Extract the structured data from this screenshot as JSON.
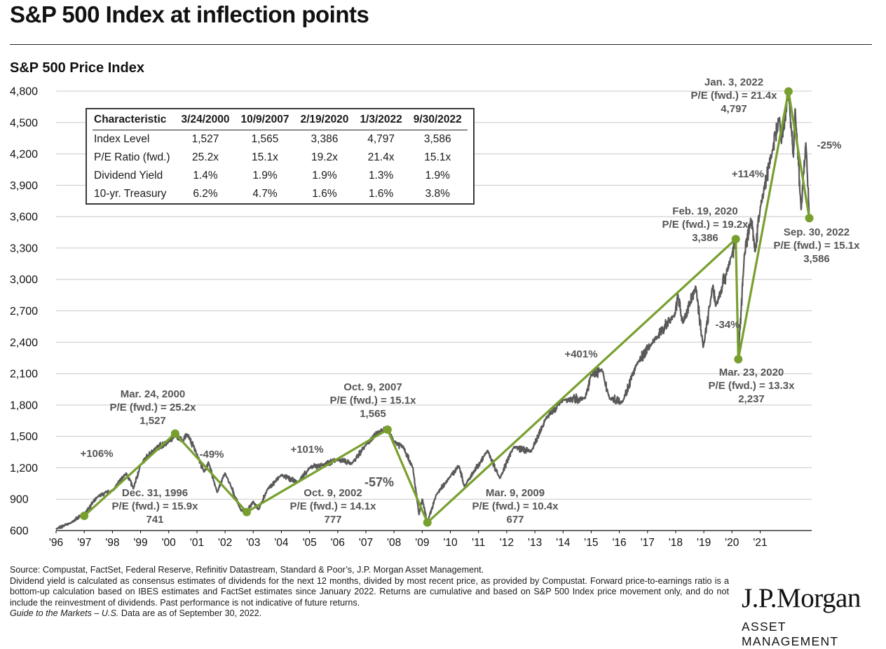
{
  "page": {
    "title": "S&P 500 Index at inflection points",
    "subtitle": "S&P 500 Price Index"
  },
  "chart_data": {
    "type": "line",
    "title": "S&P 500 Price Index",
    "ylim": [
      600,
      4800
    ],
    "y_ticks": [
      "4,800",
      "4,500",
      "4,200",
      "3,900",
      "3,600",
      "3,300",
      "3,000",
      "2,700",
      "2,400",
      "2,100",
      "1,800",
      "1,500",
      "1,200",
      "900",
      "600"
    ],
    "x_ticks": [
      "'96",
      "'97",
      "'98",
      "'99",
      "'00",
      "'01",
      "'02",
      "'03",
      "'04",
      "'05",
      "'06",
      "'07",
      "'08",
      "'09",
      "'10",
      "'11",
      "'12",
      "'13",
      "'14",
      "'15",
      "'16",
      "'17",
      "'18",
      "'19",
      "'20",
      "'21"
    ],
    "x_range": [
      "1996-01-01",
      "2022-10-31"
    ],
    "colors": {
      "index_line": "#595959",
      "inflection": "#78a02e",
      "grid": "#c8c8c8"
    },
    "series": [
      {
        "name": "S&P 500 Price Index",
        "points": [
          [
            "1996-01-01",
            615
          ],
          [
            "1996-07-01",
            670
          ],
          [
            "1997-01-01",
            760
          ],
          [
            "1997-07-01",
            930
          ],
          [
            "1998-01-01",
            980
          ],
          [
            "1998-07-01",
            1150
          ],
          [
            "1998-10-01",
            1000
          ],
          [
            "1999-01-01",
            1230
          ],
          [
            "1999-07-01",
            1380
          ],
          [
            "2000-01-01",
            1450
          ],
          [
            "2000-03-24",
            1527
          ],
          [
            "2000-07-01",
            1460
          ],
          [
            "2000-09-01",
            1520
          ],
          [
            "2001-01-01",
            1330
          ],
          [
            "2001-04-01",
            1160
          ],
          [
            "2001-06-01",
            1250
          ],
          [
            "2001-09-21",
            965
          ],
          [
            "2002-01-01",
            1150
          ],
          [
            "2002-07-23",
            797
          ],
          [
            "2002-10-09",
            777
          ],
          [
            "2003-01-01",
            880
          ],
          [
            "2003-03-11",
            800
          ],
          [
            "2003-07-01",
            990
          ],
          [
            "2004-01-01",
            1130
          ],
          [
            "2004-08-01",
            1060
          ],
          [
            "2005-01-01",
            1200
          ],
          [
            "2005-07-01",
            1230
          ],
          [
            "2006-01-01",
            1280
          ],
          [
            "2006-07-01",
            1240
          ],
          [
            "2007-01-01",
            1420
          ],
          [
            "2007-07-01",
            1550
          ],
          [
            "2007-10-09",
            1565
          ],
          [
            "2008-01-01",
            1450
          ],
          [
            "2008-05-01",
            1400
          ],
          [
            "2008-09-01",
            1200
          ],
          [
            "2008-11-20",
            752
          ],
          [
            "2009-01-01",
            900
          ],
          [
            "2009-03-09",
            677
          ],
          [
            "2009-07-01",
            940
          ],
          [
            "2010-01-01",
            1120
          ],
          [
            "2010-04-23",
            1217
          ],
          [
            "2010-07-02",
            1022
          ],
          [
            "2011-04-29",
            1364
          ],
          [
            "2011-10-03",
            1099
          ],
          [
            "2012-04-01",
            1400
          ],
          [
            "2012-11-15",
            1353
          ],
          [
            "2013-05-21",
            1669
          ],
          [
            "2013-12-31",
            1848
          ],
          [
            "2014-10-15",
            1862
          ],
          [
            "2014-12-29",
            2090
          ],
          [
            "2015-05-21",
            2131
          ],
          [
            "2015-08-25",
            1867
          ],
          [
            "2016-02-11",
            1829
          ],
          [
            "2016-08-15",
            2190
          ],
          [
            "2017-03-01",
            2395
          ],
          [
            "2017-12-29",
            2673
          ],
          [
            "2018-01-26",
            2873
          ],
          [
            "2018-04-02",
            2581
          ],
          [
            "2018-09-20",
            2930
          ],
          [
            "2018-12-24",
            2351
          ],
          [
            "2019-04-30",
            2945
          ],
          [
            "2019-06-03",
            2744
          ],
          [
            "2019-12-31",
            3231
          ],
          [
            "2020-02-19",
            3386
          ],
          [
            "2020-03-23",
            2237
          ],
          [
            "2020-06-08",
            3232
          ],
          [
            "2020-09-02",
            3580
          ],
          [
            "2020-10-30",
            3270
          ],
          [
            "2021-01-04",
            3700
          ],
          [
            "2021-06-01",
            4200
          ],
          [
            "2021-09-02",
            4537
          ],
          [
            "2021-10-04",
            4300
          ],
          [
            "2022-01-03",
            4797
          ],
          [
            "2022-03-08",
            4170
          ],
          [
            "2022-03-29",
            4631
          ],
          [
            "2022-06-16",
            3667
          ],
          [
            "2022-08-16",
            4305
          ],
          [
            "2022-09-30",
            3586
          ]
        ]
      }
    ],
    "inflection_points": [
      {
        "date": "1996-12-31",
        "value": 741
      },
      {
        "date": "2000-03-24",
        "value": 1527
      },
      {
        "date": "2002-10-09",
        "value": 777
      },
      {
        "date": "2007-10-09",
        "value": 1565
      },
      {
        "date": "2009-03-09",
        "value": 677
      },
      {
        "date": "2020-02-19",
        "value": 3386
      },
      {
        "date": "2020-03-23",
        "value": 2237
      },
      {
        "date": "2022-01-03",
        "value": 4797
      },
      {
        "date": "2022-09-30",
        "value": 3586
      }
    ],
    "annotations": {
      "dec1996": [
        "Dec. 31, 1996",
        "P/E (fwd.) = 15.9x",
        "741"
      ],
      "mar2000": [
        "Mar. 24, 2000",
        "P/E (fwd.) = 25.2x",
        "1,527"
      ],
      "oct2002": [
        "Oct. 9, 2002",
        "P/E (fwd.) = 14.1x",
        "777"
      ],
      "oct2007": [
        "Oct. 9, 2007",
        "P/E (fwd.) = 15.1x",
        "1,565"
      ],
      "mar2009": [
        "Mar. 9, 2009",
        "P/E (fwd.) = 10.4x",
        "677"
      ],
      "feb2020": [
        "Feb. 19, 2020",
        "P/E (fwd.) = 19.2x",
        "3,386"
      ],
      "mar2020": [
        "Mar. 23, 2020",
        "P/E (fwd.) = 13.3x",
        "2,237"
      ],
      "jan2022": [
        "Jan. 3, 2022",
        "P/E (fwd.) = 21.4x",
        "4,797"
      ],
      "sep2022": [
        "Sep. 30, 2022",
        "P/E (fwd.) = 15.1x",
        "3,586"
      ]
    },
    "pct_changes": [
      "+106%",
      "-49%",
      "+101%",
      "-57%",
      "+401%",
      "-34%",
      "+114%",
      "-25%"
    ]
  },
  "table": {
    "headers": [
      "Characteristic",
      "3/24/2000",
      "10/9/2007",
      "2/19/2020",
      "1/3/2022",
      "9/30/2022"
    ],
    "rows": [
      [
        "Index Level",
        "1,527",
        "1,565",
        "3,386",
        "4,797",
        "3,586"
      ],
      [
        "P/E Ratio (fwd.)",
        "25.2x",
        "15.1x",
        "19.2x",
        "21.4x",
        "15.1x"
      ],
      [
        "Dividend Yield",
        "1.4%",
        "1.9%",
        "1.9%",
        "1.3%",
        "1.9%"
      ],
      [
        "10-yr. Treasury",
        "6.2%",
        "4.7%",
        "1.6%",
        "1.6%",
        "3.8%"
      ]
    ]
  },
  "footnotes": {
    "source": "Source: Compustat, FactSet, Federal Reserve, Refinitiv Datastream, Standard & Poor’s, J.P. Morgan Asset Management.",
    "line2": "Dividend yield is calculated as consensus estimates of dividends for the next 12 months, divided by most recent price, as provided by Compustat. Forward price-to-earnings ratio is a bottom-up calculation based on IBES estimates and FactSet estimates since January 2022. Returns are cumulative and based on S&P 500 Index price movement only, and do not include the reinvestment of dividends. Past performance is not indicative of future returns.",
    "guide_italic": "Guide to the Markets – U.S.",
    "guide_rest": " Data are as of September 30, 2022."
  },
  "logo": {
    "name": "J.P.Morgan",
    "tagline": "ASSET MANAGEMENT"
  }
}
